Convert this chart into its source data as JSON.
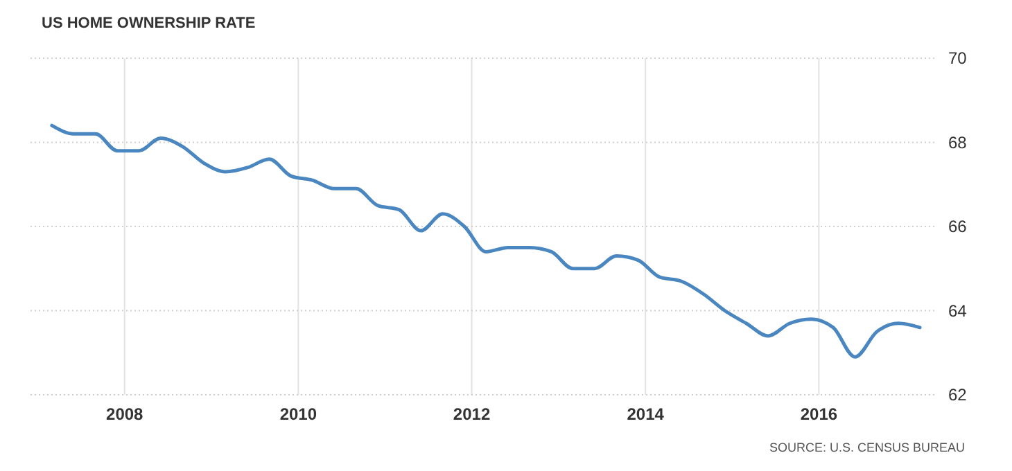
{
  "chart_data": {
    "type": "line",
    "title": "US HOME OWNERSHIP RATE",
    "annotations": [
      "SOURCE: U.S. CENSUS BUREAU"
    ],
    "x": [
      "2007-03",
      "2007-06",
      "2007-09",
      "2007-12",
      "2008-03",
      "2008-06",
      "2008-09",
      "2008-12",
      "2009-03",
      "2009-06",
      "2009-09",
      "2009-12",
      "2010-03",
      "2010-06",
      "2010-09",
      "2010-12",
      "2011-03",
      "2011-06",
      "2011-09",
      "2011-12",
      "2012-03",
      "2012-06",
      "2012-09",
      "2012-12",
      "2013-03",
      "2013-06",
      "2013-09",
      "2013-12",
      "2014-03",
      "2014-06",
      "2014-09",
      "2014-12",
      "2015-03",
      "2015-06",
      "2015-09",
      "2015-12",
      "2016-03",
      "2016-06",
      "2016-09",
      "2016-12",
      "2017-03"
    ],
    "series": [
      {
        "color": "#4a86bf",
        "values": [
          68.4,
          68.2,
          68.2,
          67.8,
          67.8,
          68.1,
          67.9,
          67.5,
          67.3,
          67.4,
          67.6,
          67.2,
          67.1,
          66.9,
          66.9,
          66.5,
          66.4,
          65.9,
          66.3,
          66.0,
          65.4,
          65.5,
          65.5,
          65.4,
          65.0,
          65.0,
          65.3,
          65.2,
          64.8,
          64.7,
          64.4,
          64.0,
          63.7,
          63.4,
          63.7,
          63.8,
          63.6,
          62.9,
          63.5,
          63.7,
          63.6
        ]
      }
    ],
    "xlim": [
      "2006-12",
      "2017-05"
    ],
    "xticks": [
      {
        "value": "2008",
        "label": "2008"
      },
      {
        "value": "2010",
        "label": "2010"
      },
      {
        "value": "2012",
        "label": "2012"
      },
      {
        "value": "2014",
        "label": "2014"
      },
      {
        "value": "2016",
        "label": "2016"
      }
    ],
    "ylim": [
      62,
      70
    ],
    "yticks": [
      62,
      64,
      66,
      68,
      70
    ],
    "grid": true,
    "line_style": "solid",
    "marker": "none"
  }
}
